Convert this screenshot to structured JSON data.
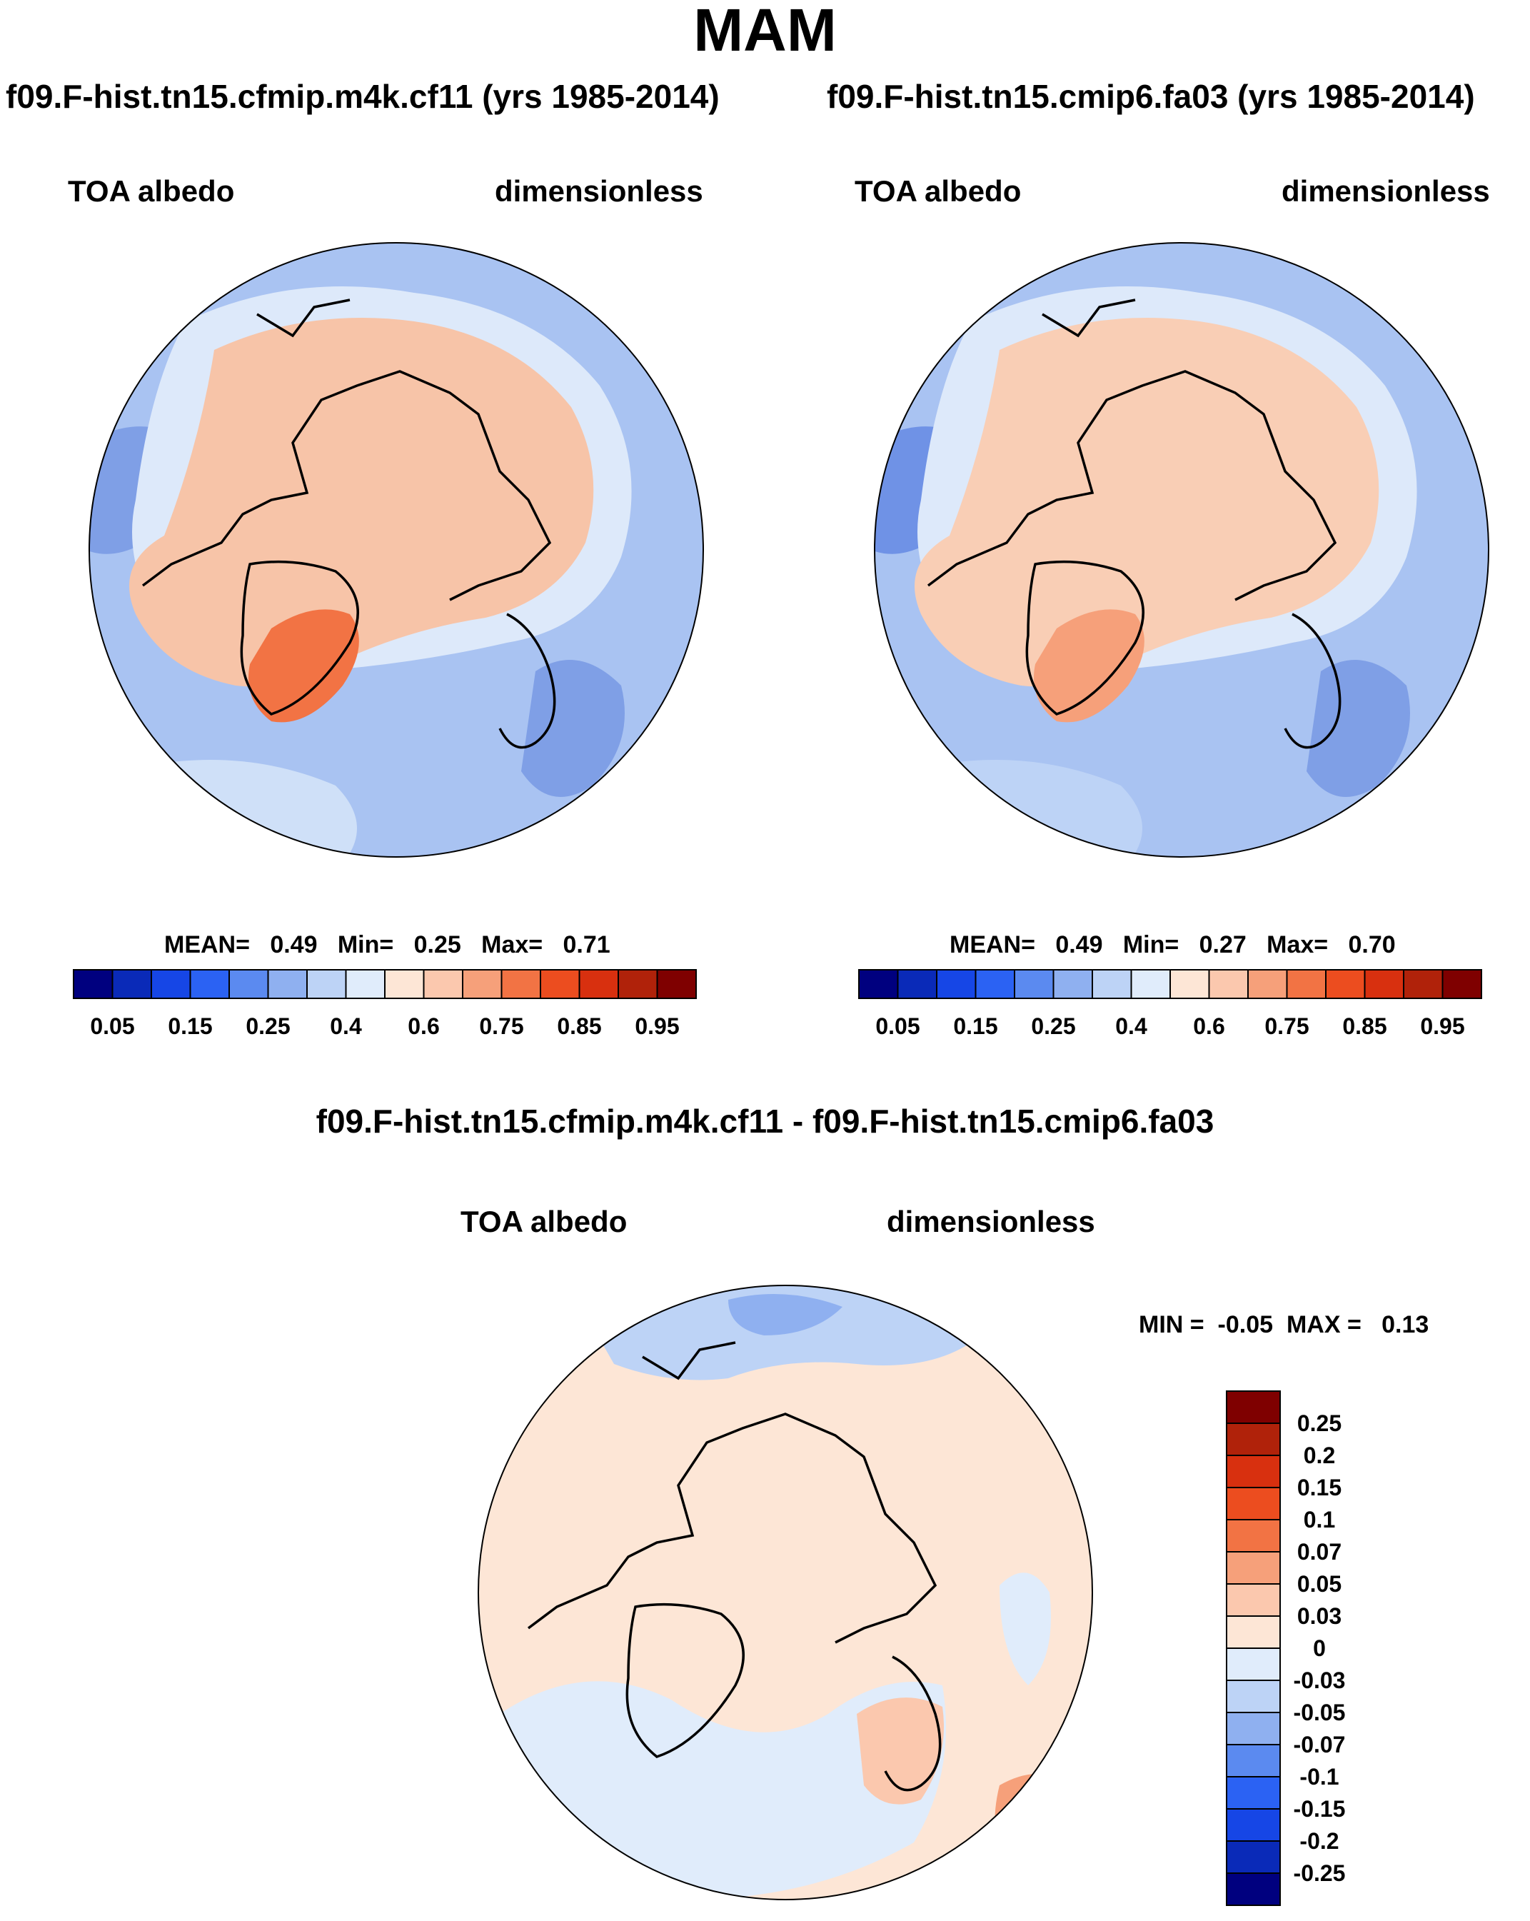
{
  "title": "MAM",
  "panels": [
    {
      "case": "f09.F-hist.tn15.cfmip.m4k.cf11 (yrs 1985-2014)",
      "variable": "TOA albedo",
      "units": "dimensionless",
      "stats": {
        "mean_label": "MEAN=",
        "mean": "0.49",
        "min_label": "Min=",
        "min": "0.25",
        "max_label": "Max=",
        "max": "0.71"
      },
      "greenland_tone": 11
    },
    {
      "case": "f09.F-hist.tn15.cmip6.fa03 (yrs 1985-2014)",
      "variable": "TOA albedo",
      "units": "dimensionless",
      "stats": {
        "mean_label": "MEAN=",
        "mean": "0.49",
        "min_label": "Min=",
        "min": "0.27",
        "max_label": "Max=",
        "max": "0.70"
      },
      "greenland_tone": 10
    }
  ],
  "diff": {
    "title": "f09.F-hist.tn15.cfmip.m4k.cf11 - f09.F-hist.tn15.cmip6.fa03",
    "variable": "TOA albedo",
    "units": "dimensionless",
    "minmax": {
      "min_label": "MIN =",
      "min": "-0.05",
      "max_label": "MAX =",
      "max": "0.13"
    }
  },
  "colorbar_main": {
    "colors": [
      "#00007f",
      "#0a2ab8",
      "#1646e6",
      "#2b62f3",
      "#5b8af0",
      "#8fb0f0",
      "#bdd3f6",
      "#e0ecfb",
      "#fde6d6",
      "#fbc8ae",
      "#f6a07a",
      "#f27344",
      "#ec4d1f",
      "#d8300f",
      "#b0220a",
      "#7f0000"
    ],
    "tick_labels": [
      "0.05",
      "0.15",
      "0.25",
      "0.4",
      "0.6",
      "0.75",
      "0.85",
      "0.95"
    ],
    "tick_boundaries": [
      1,
      3,
      5,
      7,
      9,
      11,
      13,
      15
    ]
  },
  "colorbar_diff": {
    "colors": [
      "#00007f",
      "#0a2ab8",
      "#1646e6",
      "#2b62f3",
      "#5b8af0",
      "#8fb0f0",
      "#bdd3f6",
      "#e0ecfb",
      "#fde6d6",
      "#fbc8ae",
      "#f6a07a",
      "#f27344",
      "#ec4d1f",
      "#d8300f",
      "#b0220a",
      "#7f0000"
    ],
    "tick_labels": [
      "-0.25",
      "-0.2",
      "-0.15",
      "-0.1",
      "-0.07",
      "-0.05",
      "-0.03",
      "0",
      "0.03",
      "0.05",
      "0.07",
      "0.1",
      "0.15",
      "0.2",
      "0.25"
    ]
  }
}
